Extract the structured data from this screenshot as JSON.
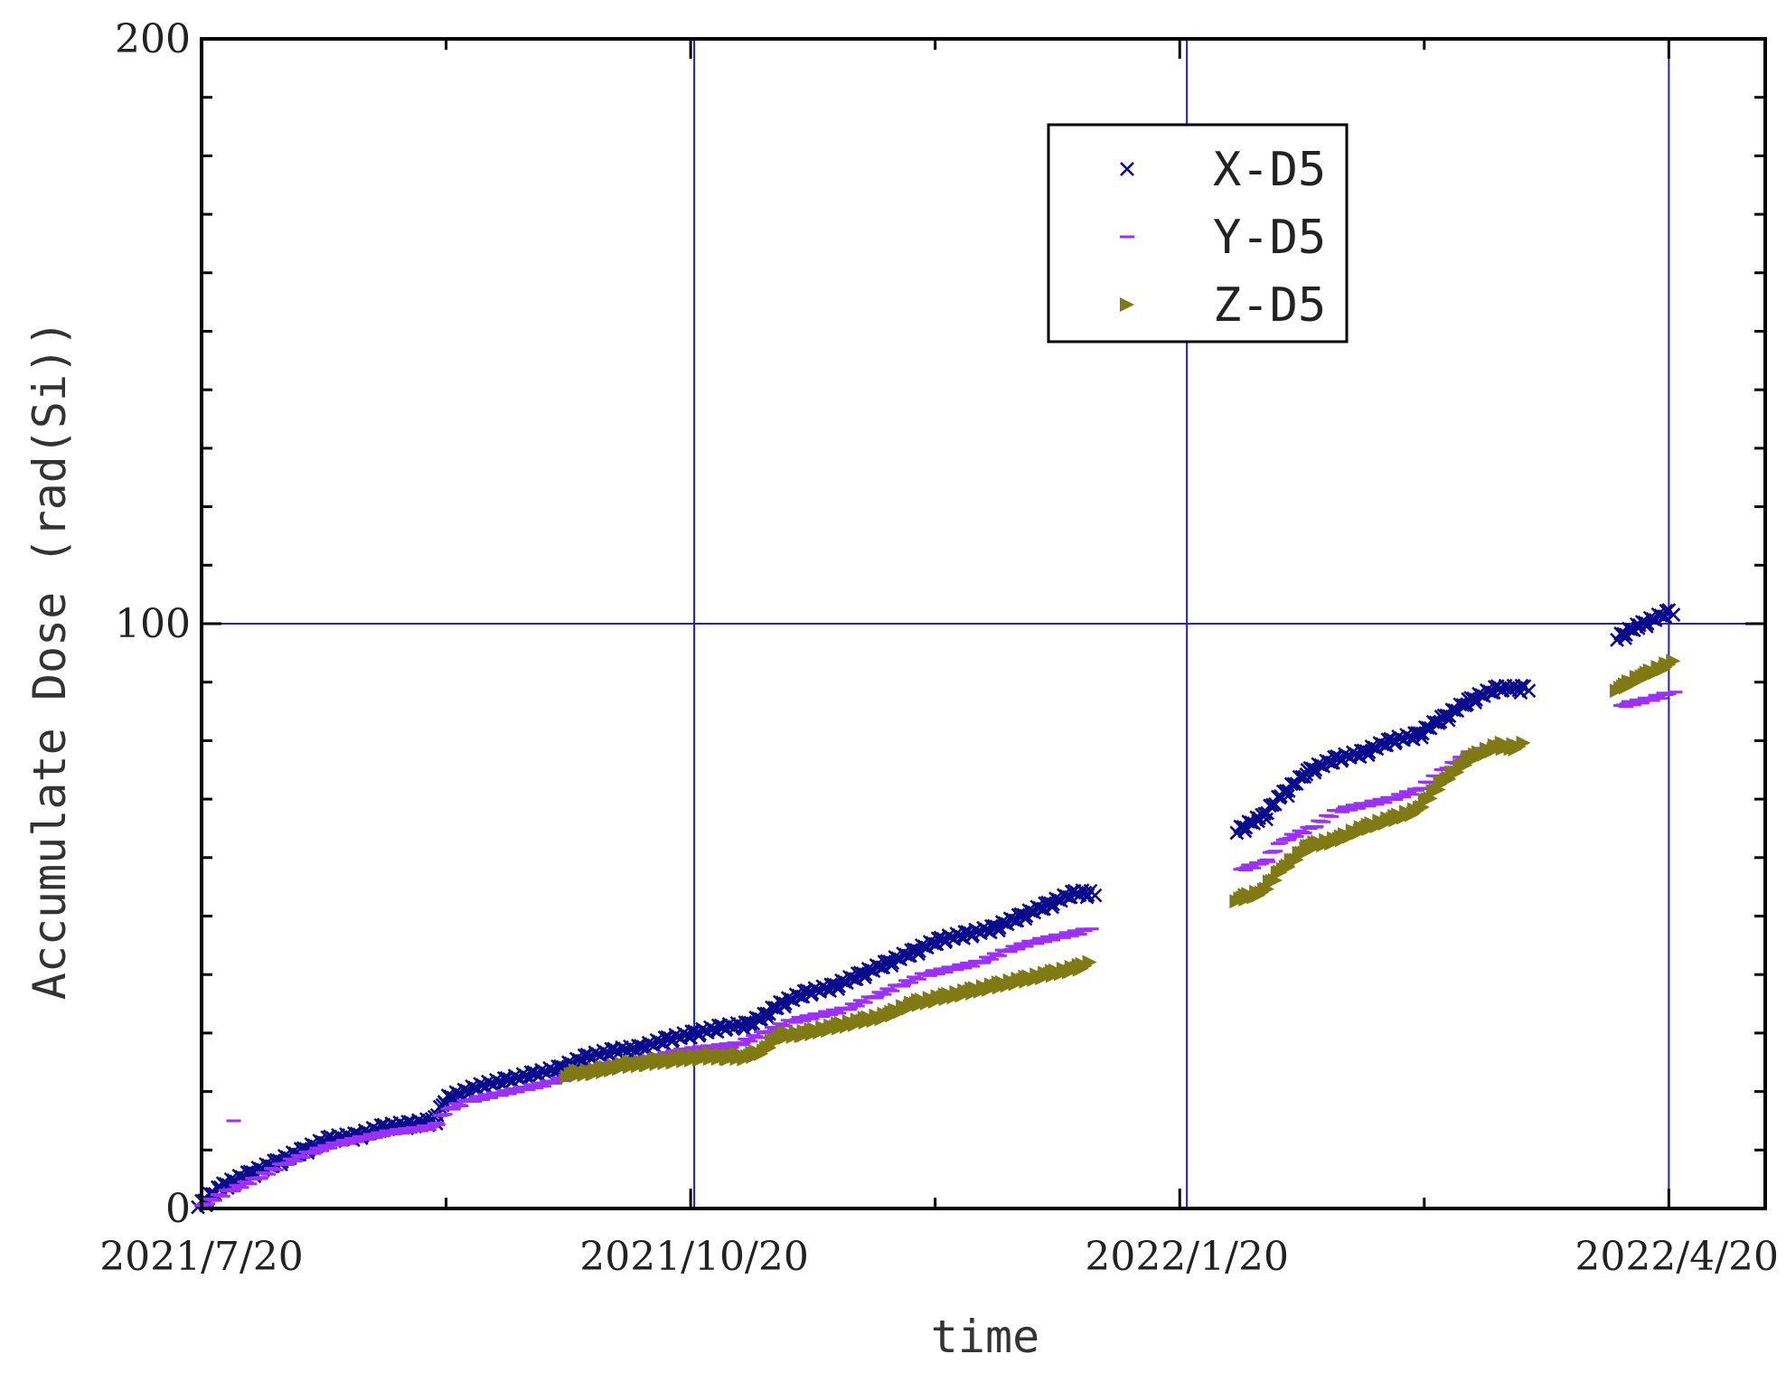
{
  "chart_data": {
    "type": "scatter",
    "title": "",
    "xlabel": "time",
    "ylabel": "Accumulate Dose (rad(Si))",
    "xlim": [
      "2021-07-20",
      "2022-05-08"
    ],
    "ylim": [
      0,
      200
    ],
    "x_ticks": [
      {
        "date": "2021-07-20",
        "label": "2021/7/20"
      },
      {
        "date": "2021-10-20",
        "label": "2021/10/20"
      },
      {
        "date": "2022-01-20",
        "label": "2022/1/20"
      },
      {
        "date": "2022-04-20",
        "label": "2022/4/20"
      }
    ],
    "y_ticks": [
      {
        "value": 0,
        "label": "0"
      },
      {
        "value": 100,
        "label": "100"
      },
      {
        "value": 200,
        "label": "200"
      }
    ],
    "grid": {
      "x": [
        "2021-10-20",
        "2022-01-20",
        "2022-04-20"
      ],
      "y": [
        100
      ]
    },
    "legend_position": "top-right",
    "series": [
      {
        "name": "X-D5",
        "marker": "x",
        "color": "#0a0a8c",
        "points": [
          [
            "2021-07-20",
            1
          ],
          [
            "2021-07-24",
            4
          ],
          [
            "2021-07-29",
            6
          ],
          [
            "2021-08-03",
            8
          ],
          [
            "2021-08-08",
            10
          ],
          [
            "2021-08-13",
            12
          ],
          [
            "2021-08-18",
            12.5
          ],
          [
            "2021-08-23",
            14
          ],
          [
            "2021-08-28",
            14.5
          ],
          [
            "2021-09-01",
            15
          ],
          [
            "2021-09-04",
            19
          ],
          [
            "2021-09-07",
            20
          ],
          [
            "2021-09-10",
            21
          ],
          [
            "2021-09-15",
            22
          ],
          [
            "2021-09-20",
            23
          ],
          [
            "2021-09-25",
            24
          ],
          [
            "2021-09-30",
            26
          ],
          [
            "2021-10-05",
            27
          ],
          [
            "2021-10-10",
            27.5
          ],
          [
            "2021-10-15",
            29
          ],
          [
            "2021-10-20",
            30
          ],
          [
            "2021-10-25",
            31
          ],
          [
            "2021-10-30",
            31.5
          ],
          [
            "2021-11-02",
            33
          ],
          [
            "2021-11-05",
            35
          ],
          [
            "2021-11-10",
            37
          ],
          [
            "2021-11-15",
            38
          ],
          [
            "2021-11-20",
            40
          ],
          [
            "2021-11-25",
            42
          ],
          [
            "2021-11-30",
            44
          ],
          [
            "2021-12-05",
            46
          ],
          [
            "2021-12-10",
            47
          ],
          [
            "2021-12-15",
            48
          ],
          [
            "2021-12-20",
            50
          ],
          [
            "2021-12-25",
            52
          ],
          [
            "2021-12-30",
            54
          ],
          [
            "2022-01-02",
            54
          ],
          [
            "2022-01-30",
            65
          ],
          [
            "2022-02-03",
            67
          ],
          [
            "2022-02-07",
            71
          ],
          [
            "2022-02-12",
            75
          ],
          [
            "2022-02-17",
            77
          ],
          [
            "2022-02-22",
            78
          ],
          [
            "2022-02-27",
            80
          ],
          [
            "2022-03-04",
            81
          ],
          [
            "2022-03-09",
            84
          ],
          [
            "2022-03-14",
            87
          ],
          [
            "2022-03-19",
            89
          ],
          [
            "2022-03-24",
            89
          ],
          [
            "2022-04-11",
            98
          ],
          [
            "2022-04-15",
            100
          ],
          [
            "2022-04-20",
            102
          ]
        ]
      },
      {
        "name": "Y-D5",
        "marker": "-",
        "color": "#9b30ff",
        "points": [
          [
            "2021-07-26",
            15
          ],
          [
            "2021-07-20",
            0.5
          ],
          [
            "2021-07-25",
            3
          ],
          [
            "2021-07-30",
            5
          ],
          [
            "2021-08-04",
            7.5
          ],
          [
            "2021-08-09",
            9.5
          ],
          [
            "2021-08-14",
            11
          ],
          [
            "2021-08-19",
            12
          ],
          [
            "2021-08-24",
            13
          ],
          [
            "2021-08-29",
            13.5
          ],
          [
            "2021-09-01",
            14
          ],
          [
            "2021-09-04",
            17
          ],
          [
            "2021-09-08",
            18.5
          ],
          [
            "2021-09-13",
            19.5
          ],
          [
            "2021-09-18",
            20.5
          ],
          [
            "2021-09-23",
            21.5
          ],
          [
            "2021-09-28",
            23
          ],
          [
            "2021-10-03",
            24.5
          ],
          [
            "2021-10-08",
            25
          ],
          [
            "2021-10-13",
            26
          ],
          [
            "2021-10-18",
            27
          ],
          [
            "2021-10-23",
            27.5
          ],
          [
            "2021-10-28",
            28
          ],
          [
            "2021-11-02",
            30
          ],
          [
            "2021-11-07",
            32
          ],
          [
            "2021-11-12",
            33
          ],
          [
            "2021-11-17",
            34
          ],
          [
            "2021-11-22",
            36
          ],
          [
            "2021-11-27",
            38
          ],
          [
            "2021-12-02",
            40
          ],
          [
            "2021-12-07",
            41
          ],
          [
            "2021-12-12",
            42
          ],
          [
            "2021-12-17",
            44
          ],
          [
            "2021-12-22",
            45.5
          ],
          [
            "2021-12-27",
            46.5
          ],
          [
            "2022-01-01",
            47.5
          ],
          [
            "2022-01-30",
            58
          ],
          [
            "2022-02-03",
            59
          ],
          [
            "2022-02-07",
            63
          ],
          [
            "2022-02-12",
            65
          ],
          [
            "2022-02-17",
            68
          ],
          [
            "2022-02-22",
            69
          ],
          [
            "2022-02-27",
            70
          ],
          [
            "2022-03-04",
            71.5
          ],
          [
            "2022-03-09",
            75
          ],
          [
            "2022-03-14",
            78
          ],
          [
            "2022-03-19",
            79
          ],
          [
            "2022-04-11",
            86
          ],
          [
            "2022-04-16",
            87
          ],
          [
            "2022-04-20",
            88
          ]
        ]
      },
      {
        "name": "Z-D5",
        "marker": "triangle-right",
        "color": "#7f7a13",
        "points": [
          [
            "2021-09-27",
            23
          ],
          [
            "2021-10-02",
            23.5
          ],
          [
            "2021-10-07",
            24.5
          ],
          [
            "2021-10-12",
            25
          ],
          [
            "2021-10-17",
            25.5
          ],
          [
            "2021-10-22",
            26
          ],
          [
            "2021-10-27",
            26
          ],
          [
            "2021-10-30",
            26
          ],
          [
            "2021-11-02",
            27
          ],
          [
            "2021-11-05",
            29.5
          ],
          [
            "2021-11-10",
            30
          ],
          [
            "2021-11-15",
            31
          ],
          [
            "2021-11-20",
            32
          ],
          [
            "2021-11-25",
            33
          ],
          [
            "2021-11-30",
            35
          ],
          [
            "2021-12-05",
            36
          ],
          [
            "2021-12-10",
            37
          ],
          [
            "2021-12-15",
            38
          ],
          [
            "2021-12-20",
            39
          ],
          [
            "2021-12-25",
            40
          ],
          [
            "2021-12-30",
            41
          ],
          [
            "2022-01-01",
            41.5
          ],
          [
            "2022-01-30",
            53
          ],
          [
            "2022-02-03",
            54
          ],
          [
            "2022-02-07",
            58
          ],
          [
            "2022-02-12",
            62
          ],
          [
            "2022-02-17",
            63
          ],
          [
            "2022-02-22",
            65
          ],
          [
            "2022-02-27",
            66.5
          ],
          [
            "2022-03-04",
            68
          ],
          [
            "2022-03-09",
            73
          ],
          [
            "2022-03-14",
            77
          ],
          [
            "2022-03-19",
            79
          ],
          [
            "2022-03-23",
            79
          ],
          [
            "2022-04-11",
            89
          ],
          [
            "2022-04-15",
            91
          ],
          [
            "2022-04-20",
            93
          ]
        ]
      }
    ]
  }
}
